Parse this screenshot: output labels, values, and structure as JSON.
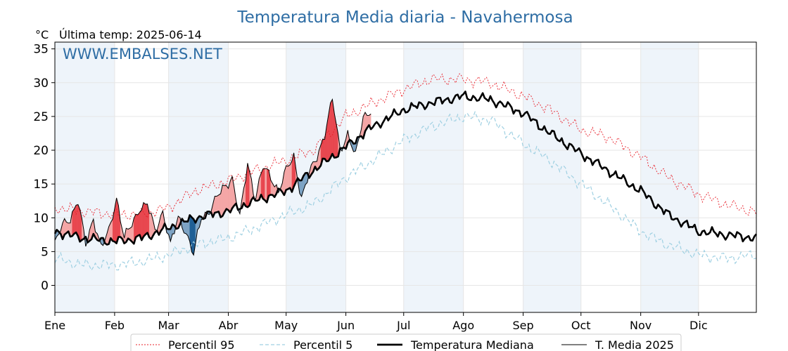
{
  "chart_data": {
    "type": "line",
    "title": "Temperatura Media diaria - Navahermosa",
    "unit_label": "°C",
    "subtitle": "Última temp: 2025-06-14",
    "watermark": "WWW.EMBALSES.NET",
    "ylim": [
      -4,
      36
    ],
    "yticks": [
      0,
      5,
      10,
      15,
      20,
      25,
      30,
      35
    ],
    "x_tick_labels": [
      "Ene",
      "Feb",
      "Mar",
      "Abr",
      "May",
      "Jun",
      "Jul",
      "Ago",
      "Sep",
      "Oct",
      "Nov",
      "Dic"
    ],
    "grid": true,
    "legend_position": "bottom",
    "colors": {
      "p95": "#e8202a",
      "p5": "#9fd0e2",
      "mediana": "#000000",
      "media2025": "#000000",
      "above_fill": "#f4a6a6",
      "above_strong_fill": "#e8474f",
      "below_fill": "#7da3c4",
      "below_strong_fill": "#1f5f95",
      "band": "#eef4fa",
      "title": "#2e6da4"
    },
    "series": [
      {
        "name": "Percentil 95",
        "x_day": [
          1,
          15,
          32,
          46,
          60,
          74,
          91,
          105,
          121,
          135,
          152,
          166,
          182,
          196,
          213,
          227,
          244,
          258,
          274,
          288,
          305,
          319,
          335,
          349,
          365
        ],
        "values": [
          11.5,
          11,
          10.5,
          10.5,
          11.5,
          14,
          15.5,
          17,
          18.5,
          20,
          25,
          27,
          29,
          30.5,
          30.5,
          30,
          28,
          26,
          23,
          22,
          19,
          16,
          13.5,
          12,
          10.8
        ]
      },
      {
        "name": "Percentil 5",
        "x_day": [
          1,
          15,
          32,
          46,
          60,
          74,
          91,
          105,
          121,
          135,
          152,
          166,
          182,
          196,
          213,
          227,
          244,
          258,
          274,
          288,
          305,
          319,
          335,
          349,
          365
        ],
        "values": [
          4,
          3,
          3,
          3.5,
          4.5,
          6,
          7,
          8.5,
          10.5,
          12,
          16,
          18.5,
          21.5,
          23.5,
          25,
          24.5,
          21,
          18.5,
          15,
          12,
          8,
          6,
          4.5,
          4,
          4.5
        ]
      },
      {
        "name": "Temperatura Mediana",
        "x_day": [
          1,
          15,
          32,
          46,
          60,
          74,
          91,
          105,
          121,
          135,
          152,
          166,
          182,
          196,
          213,
          227,
          244,
          258,
          274,
          288,
          305,
          319,
          335,
          349,
          365
        ],
        "values": [
          8,
          7,
          6.5,
          7,
          8.5,
          10,
          11,
          12.5,
          14,
          17,
          20.5,
          23.5,
          26,
          27,
          28,
          27.5,
          25.5,
          22.5,
          19.5,
          17,
          14,
          10.5,
          8,
          7.5,
          7
        ]
      },
      {
        "name": "T. Media 2025",
        "x_day": [
          1,
          5,
          9,
          13,
          17,
          21,
          25,
          29,
          33,
          37,
          41,
          45,
          49,
          53,
          57,
          61,
          65,
          69,
          73,
          77,
          81,
          85,
          89,
          93,
          97,
          101,
          105,
          109,
          113,
          117,
          121,
          125,
          129,
          133,
          137,
          141,
          145,
          149,
          153,
          157,
          161,
          165
        ],
        "values": [
          6,
          9,
          10,
          12.5,
          6,
          10,
          5.5,
          8,
          13,
          7,
          9,
          11.5,
          12,
          8,
          11,
          6,
          10,
          8,
          4.5,
          10,
          11,
          13,
          14.5,
          16,
          10,
          18,
          13,
          17.5,
          16,
          14,
          17,
          19,
          13,
          16.5,
          19,
          22.5,
          27.5,
          20,
          22.5,
          19,
          25,
          26
        ]
      }
    ],
    "legend": [
      {
        "label": "Percentil 95",
        "style": "dotted-red"
      },
      {
        "label": "Percentil 5",
        "style": "dashed-lightblue"
      },
      {
        "label": "Temperatura Mediana",
        "style": "thick-black"
      },
      {
        "label": "T. Media 2025",
        "style": "thin-black"
      }
    ]
  }
}
